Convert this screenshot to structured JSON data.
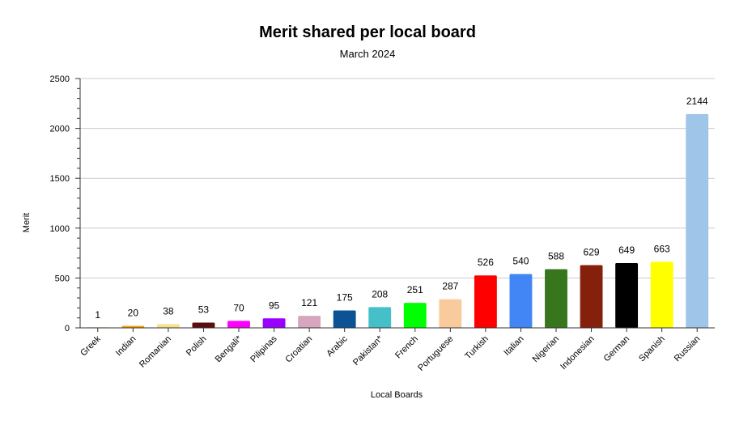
{
  "chart_data": {
    "type": "bar",
    "title": "Merit shared per local board",
    "subtitle": "March 2024",
    "xlabel": "Local Boards",
    "ylabel": "Merit",
    "ylim": [
      0,
      2500
    ],
    "yticks": [
      0,
      500,
      1000,
      1500,
      2000,
      2500
    ],
    "grid": true,
    "legend": "none",
    "categories": [
      "Greek",
      "Indian",
      "Romanian",
      "Polish",
      "Bengali*",
      "Pilipinas",
      "Croatian",
      "Arabic",
      "Pakistan*",
      "French",
      "Portuguese",
      "Turkish",
      "Italian",
      "Nigerian",
      "Indonesian",
      "German",
      "Spanish",
      "Russian"
    ],
    "values": [
      1,
      20,
      38,
      53,
      70,
      95,
      121,
      175,
      208,
      251,
      287,
      526,
      540,
      588,
      629,
      649,
      663,
      2144
    ],
    "colors": [
      "#f2b632",
      "#f0a30a",
      "#f7e08a",
      "#5a0e0e",
      "#ff00ff",
      "#9900ff",
      "#d5a6bd",
      "#0b5394",
      "#45c0c8",
      "#00ff00",
      "#f9cb9c",
      "#ff0000",
      "#4285f4",
      "#38761d",
      "#85200c",
      "#000000",
      "#ffff00",
      "#9fc5e8"
    ]
  }
}
